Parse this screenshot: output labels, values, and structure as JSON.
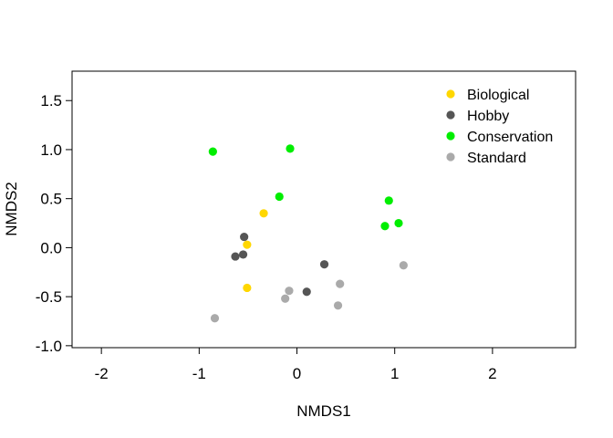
{
  "chart_data": {
    "type": "scatter",
    "xlabel": "NMDS1",
    "ylabel": "NMDS2",
    "xlim": [
      -2.3,
      2.85
    ],
    "ylim": [
      -1.02,
      1.8
    ],
    "x_ticks": [
      -2,
      -1,
      0,
      1,
      2
    ],
    "x_tick_labels": [
      "-2",
      "-1",
      "0",
      "1",
      "2"
    ],
    "y_ticks": [
      -1.0,
      -0.5,
      0.0,
      0.5,
      1.0,
      1.5
    ],
    "y_tick_labels": [
      "-1.0",
      "-0.5",
      "0.0",
      "0.5",
      "1.0",
      "1.5"
    ],
    "grid": false,
    "legend_position": "top-right",
    "series": [
      {
        "name": "Biological",
        "color": "#FFD700",
        "points": [
          [
            -0.34,
            0.35
          ],
          [
            -0.51,
            0.03
          ],
          [
            -0.51,
            -0.41
          ]
        ]
      },
      {
        "name": "Hobby",
        "color": "#555555",
        "points": [
          [
            -0.54,
            0.11
          ],
          [
            -0.55,
            -0.07
          ],
          [
            -0.63,
            -0.09
          ],
          [
            0.28,
            -0.17
          ],
          [
            0.1,
            -0.45
          ]
        ]
      },
      {
        "name": "Conservation",
        "color": "#00EE00",
        "points": [
          [
            -0.86,
            0.98
          ],
          [
            -0.07,
            1.01
          ],
          [
            -0.18,
            0.52
          ],
          [
            0.94,
            0.48
          ],
          [
            1.04,
            0.25
          ],
          [
            0.9,
            0.22
          ]
        ]
      },
      {
        "name": "Standard",
        "color": "#AAAAAA",
        "points": [
          [
            -0.84,
            -0.72
          ],
          [
            -0.08,
            -0.44
          ],
          [
            -0.12,
            -0.52
          ],
          [
            0.44,
            -0.37
          ],
          [
            0.42,
            -0.59
          ],
          [
            1.09,
            -0.18
          ]
        ]
      }
    ]
  }
}
